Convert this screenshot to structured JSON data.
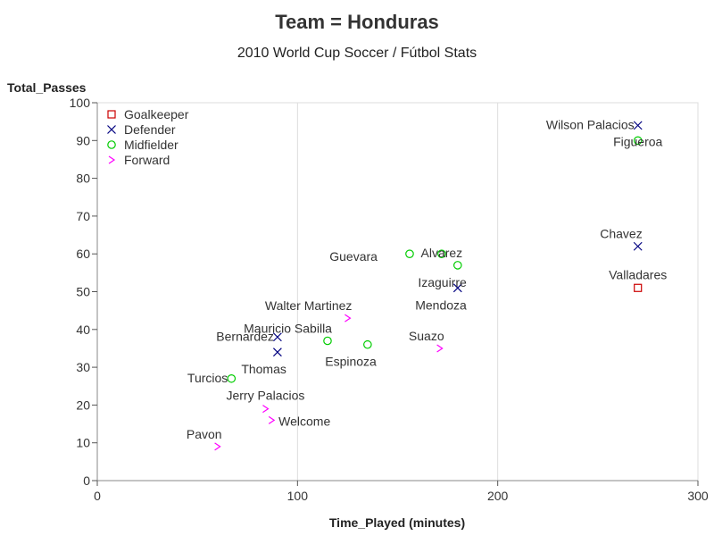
{
  "chart_data": {
    "type": "scatter",
    "title": "Team = Honduras",
    "subtitle": "2010 World Cup Soccer / Fútbol Stats",
    "xlabel": "Time_Played (minutes)",
    "ylabel": "Total_Passes",
    "xlim": [
      0,
      300
    ],
    "ylim": [
      0,
      100
    ],
    "x_ticks": [
      0,
      100,
      200,
      300
    ],
    "y_ticks": [
      0,
      10,
      20,
      30,
      40,
      50,
      60,
      70,
      80,
      90,
      100
    ],
    "x_gridlines": [
      100,
      200,
      300
    ],
    "legend_position": "top-left",
    "series": [
      {
        "name": "Goalkeeper",
        "marker": "square",
        "color": "#cc0000",
        "points": [
          {
            "x": 270,
            "y": 51,
            "label": "Valladares",
            "label_pos": "above"
          }
        ]
      },
      {
        "name": "Defender",
        "marker": "x",
        "color": "#000080",
        "points": [
          {
            "x": 270,
            "y": 94,
            "label": "Wilson Palacios",
            "label_pos": "left"
          },
          {
            "x": 270,
            "y": 62,
            "label": "Chavez",
            "label_pos": "above-left"
          },
          {
            "x": 180,
            "y": 51,
            "label": "Mendoza",
            "label_pos": "below-left"
          },
          {
            "x": 90,
            "y": 38,
            "label": "Bernardez",
            "label_pos": "left"
          },
          {
            "x": 90,
            "y": 34,
            "label": "Thomas",
            "label_pos": "below-left"
          }
        ]
      },
      {
        "name": "Midfielder",
        "marker": "circle",
        "color": "#00cc00",
        "points": [
          {
            "x": 270,
            "y": 90,
            "label": "Figueroa",
            "label_pos": "below"
          },
          {
            "x": 156,
            "y": 60,
            "label": "Guevara",
            "label_pos": "far-left"
          },
          {
            "x": 172,
            "y": 60,
            "label": "Alvarez",
            "label_pos": "center"
          },
          {
            "x": 180,
            "y": 57,
            "label": "Izaguirre",
            "label_pos": "below-left"
          },
          {
            "x": 115,
            "y": 37,
            "label": "Mauricio Sabilla",
            "label_pos": "above-left"
          },
          {
            "x": 135,
            "y": 36,
            "label": "Espinoza",
            "label_pos": "below-left"
          },
          {
            "x": 67,
            "y": 27,
            "label": "Turcios",
            "label_pos": "left"
          }
        ]
      },
      {
        "name": "Forward",
        "marker": "chevron",
        "color": "#ff00ff",
        "points": [
          {
            "x": 125,
            "y": 43,
            "label": "Walter Martinez",
            "label_pos": "above-left"
          },
          {
            "x": 171,
            "y": 35,
            "label": "Suazo",
            "label_pos": "above-left"
          },
          {
            "x": 84,
            "y": 19,
            "label": "Jerry Palacios",
            "label_pos": "above"
          },
          {
            "x": 87,
            "y": 16,
            "label": "Welcome",
            "label_pos": "right"
          },
          {
            "x": 60,
            "y": 9,
            "label": "Pavon",
            "label_pos": "above-left"
          }
        ]
      }
    ]
  }
}
